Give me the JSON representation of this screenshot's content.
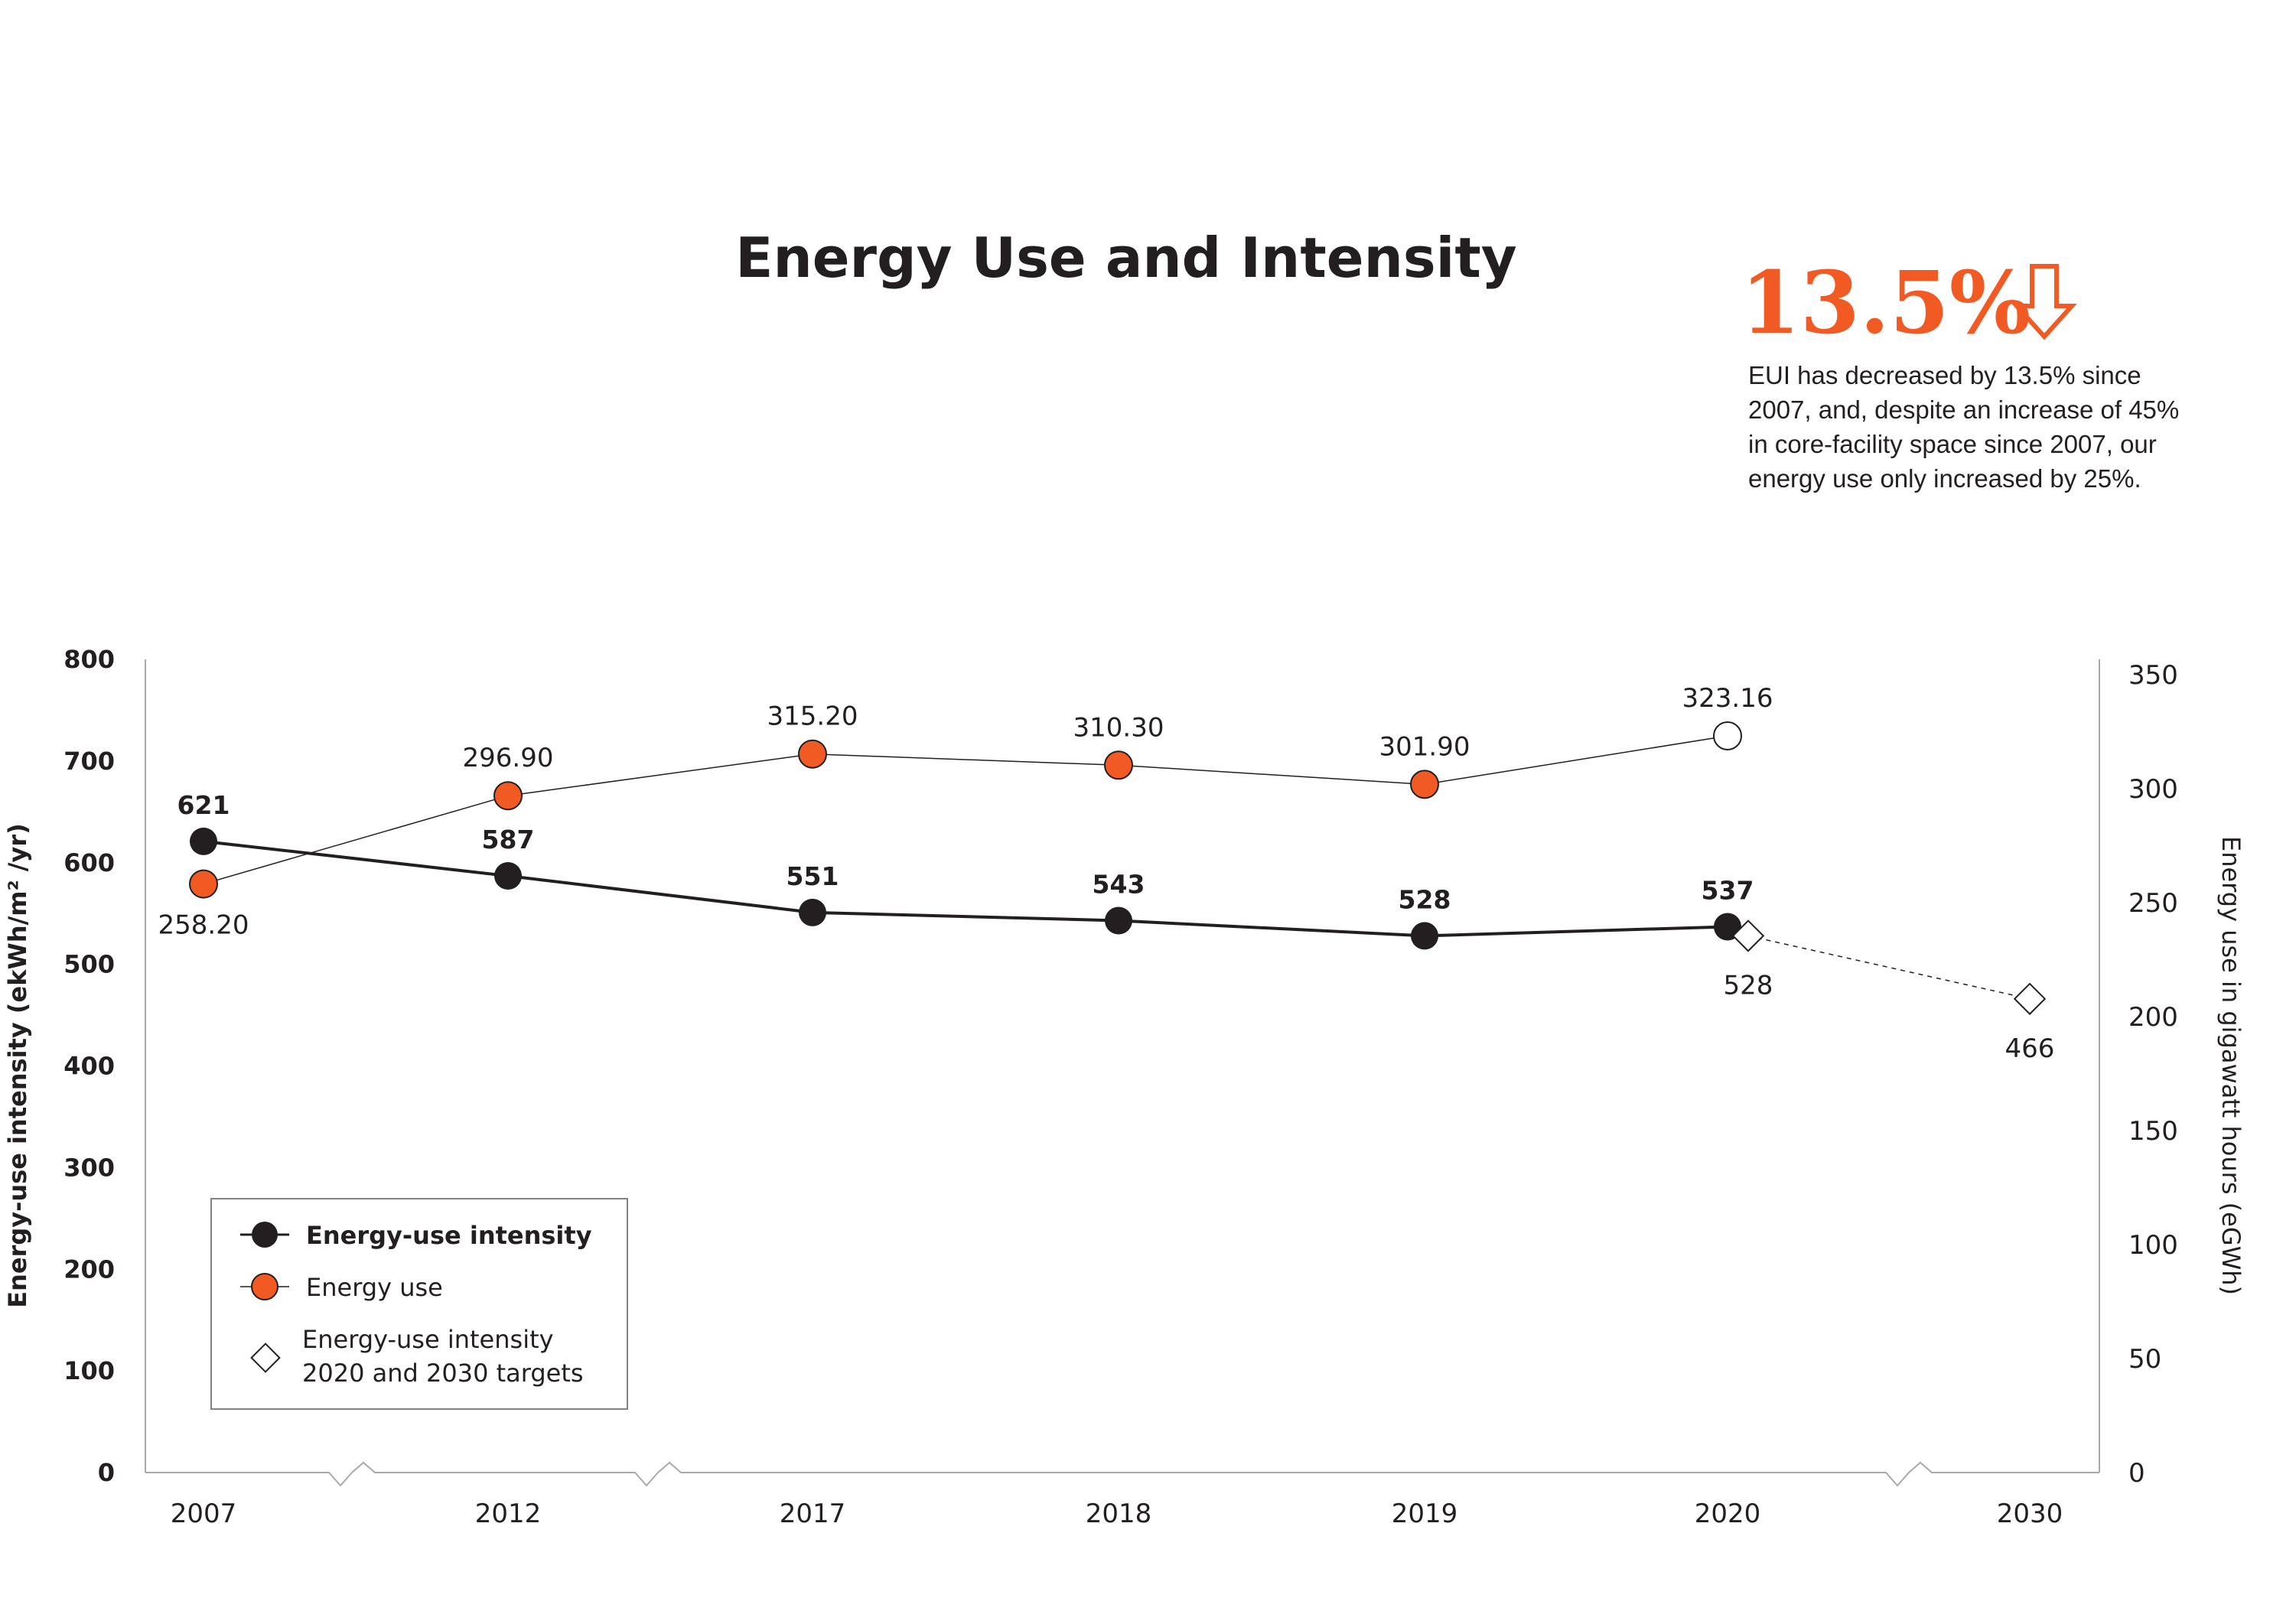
{
  "title": "Energy Use and Intensity",
  "highlight": {
    "value": "13.5%",
    "icon": "arrow-down-outline-icon",
    "note_lines": [
      "EUI has decreased by 13.5% since",
      "2007, and, despite an increase of 45%",
      "in core-facility space since 2007, our",
      "energy use only increased by 25%."
    ]
  },
  "colors": {
    "accent": "#f15a22",
    "dark": "#231f20",
    "axis": "#a7a9ac"
  },
  "chart_data": {
    "type": "line",
    "categories": [
      "2007",
      "2012",
      "2017",
      "2018",
      "2019",
      "2020",
      "2030"
    ],
    "y_left": {
      "label": "Energy-use intensity (ekWh/m² /yr)",
      "ticks": [
        "0",
        "100",
        "200",
        "300",
        "400",
        "500",
        "600",
        "700",
        "800"
      ],
      "range": [
        0,
        800
      ]
    },
    "y_right": {
      "label": "Energy use in gigawatt hours (eGWh)",
      "ticks": [
        "0",
        "50",
        "100",
        "150",
        "200",
        "250",
        "300",
        "350"
      ],
      "range": [
        0,
        350
      ]
    },
    "axis_breaks": [
      "2007-2012",
      "2012-2017",
      "2020-2030"
    ],
    "series": [
      {
        "name": "Energy-use intensity",
        "axis": "left",
        "x": [
          "2007",
          "2012",
          "2017",
          "2018",
          "2019",
          "2020"
        ],
        "values": [
          621,
          587,
          551,
          543,
          528,
          537
        ],
        "labels": [
          "621",
          "587",
          "551",
          "543",
          "528",
          "537"
        ]
      },
      {
        "name": "Energy use",
        "axis": "right",
        "x": [
          "2007",
          "2012",
          "2017",
          "2018",
          "2019",
          "2020"
        ],
        "values": [
          258.2,
          296.9,
          315.2,
          310.3,
          301.9,
          323.16
        ],
        "labels": [
          "258.20",
          "296.90",
          "315.20",
          "310.30",
          "301.90",
          "323.16"
        ],
        "last_point_open": true
      },
      {
        "name": "Energy-use intensity 2020 and 2030 targets",
        "axis": "left",
        "x": [
          "2020",
          "2030"
        ],
        "values": [
          528,
          466
        ],
        "labels": [
          "528",
          "466"
        ]
      }
    ],
    "legend": {
      "position": "bottom-left",
      "items": [
        {
          "label": "Energy-use intensity",
          "marker": "filled-circle-dark"
        },
        {
          "label": "Energy use",
          "marker": "filled-circle-orange"
        },
        {
          "label_lines": [
            "Energy-use intensity",
            "2020 and 2030 targets"
          ],
          "marker": "open-diamond"
        }
      ]
    }
  }
}
